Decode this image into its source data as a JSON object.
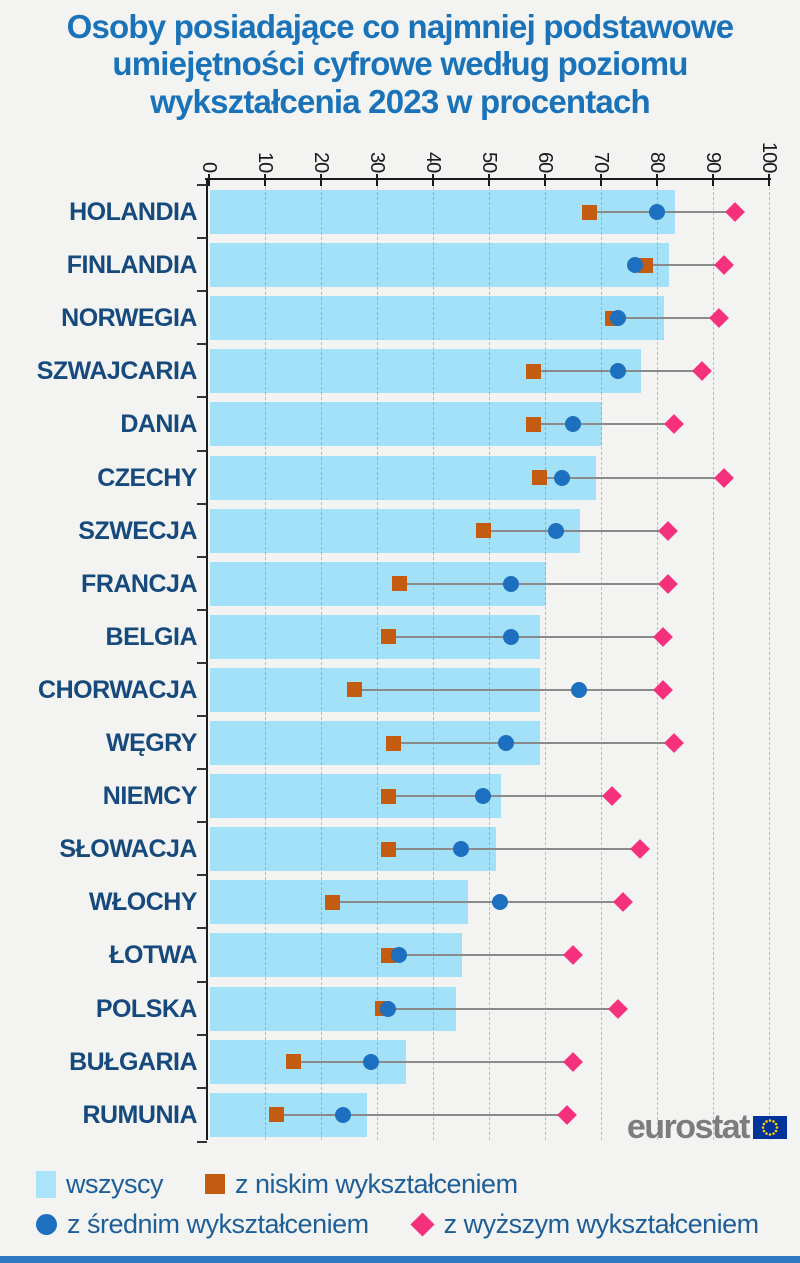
{
  "title": {
    "text": "Osoby posiadające co najmniej podstawowe umiejętności cyfrowe według poziomu wykształcenia 2023 w procentach",
    "color": "#1a73b8"
  },
  "chart_data": {
    "type": "bar",
    "orientation": "horizontal",
    "unit": "percent",
    "xlim": [
      0,
      100
    ],
    "x_ticks": [
      0,
      10,
      20,
      30,
      40,
      50,
      60,
      70,
      80,
      90,
      100
    ],
    "grid": "vertical-dashed",
    "legend_position": "bottom",
    "categories": [
      "HOLANDIA",
      "FINLANDIA",
      "NORWEGIA",
      "SZWAJCARIA",
      "DANIA",
      "CZECHY",
      "SZWECJA",
      "FRANCJA",
      "BELGIA",
      "CHORWACJA",
      "WĘGRY",
      "NIEMCY",
      "SŁOWACJA",
      "WŁOCHY",
      "ŁOTWA",
      "POLSKA",
      "BUŁGARIA",
      "RUMUNIA"
    ],
    "series": [
      {
        "name": "wszyscy",
        "marker": "bar",
        "color": "#a2e1f8",
        "values": [
          83,
          82,
          81,
          77,
          70,
          69,
          66,
          60,
          59,
          59,
          59,
          52,
          51,
          46,
          45,
          44,
          35,
          28
        ]
      },
      {
        "name": "z niskim wykształceniem",
        "marker": "square",
        "color": "#c35c10",
        "values": [
          68,
          78,
          72,
          58,
          58,
          59,
          49,
          34,
          32,
          26,
          33,
          32,
          32,
          22,
          32,
          31,
          15,
          12
        ]
      },
      {
        "name": "z średnim wykształceniem",
        "marker": "circle",
        "color": "#1d6fc0",
        "values": [
          80,
          76,
          73,
          73,
          65,
          63,
          62,
          54,
          54,
          66,
          53,
          49,
          45,
          52,
          34,
          32,
          29,
          24
        ]
      },
      {
        "name": "z wyższym wykształceniem",
        "marker": "diamond",
        "color": "#f5307d",
        "values": [
          94,
          92,
          91,
          88,
          83,
          92,
          82,
          82,
          81,
          81,
          83,
          72,
          77,
          74,
          65,
          73,
          65,
          64
        ]
      }
    ]
  },
  "legend": {
    "items": [
      {
        "label": "wszyscy",
        "marker": "bar",
        "color": "#a9e4fa"
      },
      {
        "label": "z niskim wykształceniem",
        "marker": "square",
        "color": "#c35c10"
      },
      {
        "label": "z średnim wykształceniem",
        "marker": "circle",
        "color": "#1d6fc0"
      },
      {
        "label": "z wyższym wykształceniem",
        "marker": "diamond",
        "color": "#f5307d"
      }
    ]
  },
  "branding": {
    "logo_text": "eurostat",
    "flag_color": "#003399",
    "star_color": "#ffcc00"
  }
}
